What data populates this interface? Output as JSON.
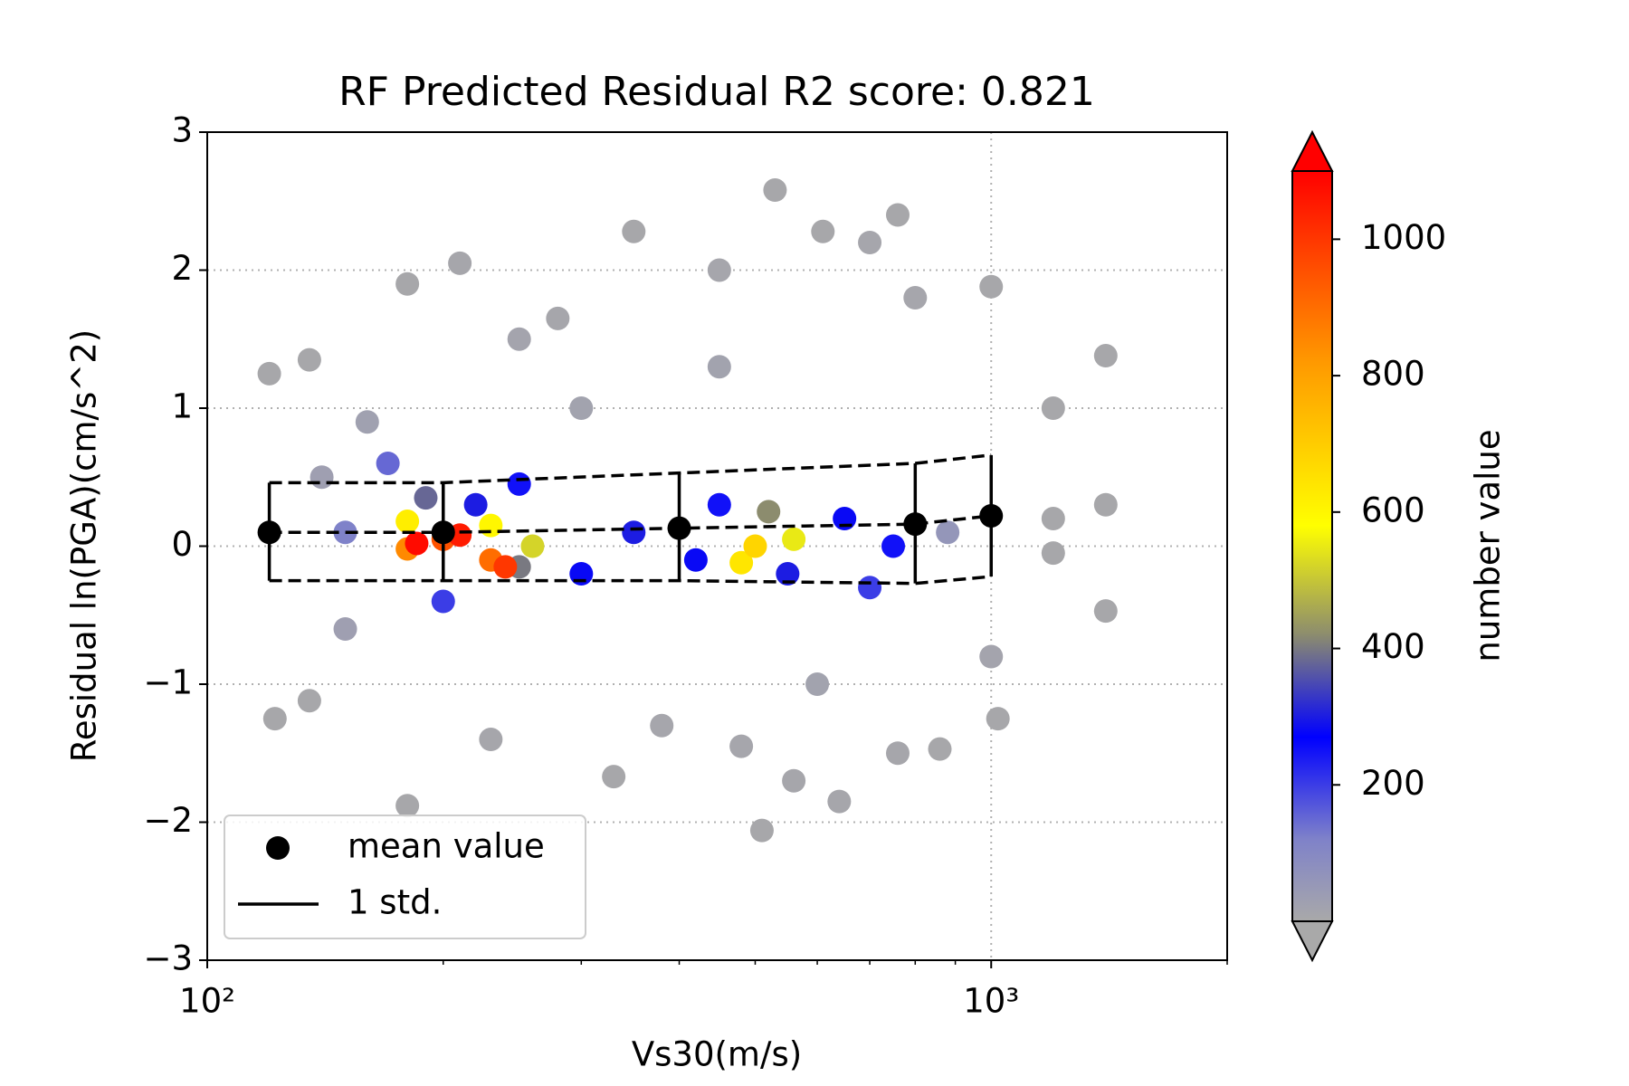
{
  "chart_data": {
    "type": "scatter",
    "title": "RF Predicted Residual R2 score: 0.821",
    "x_label": "Vs30(m/s)",
    "y_label": "Residual ln(PGA)(cm/s^2)",
    "x_log": true,
    "xlim": [
      100,
      2000
    ],
    "xticks": [
      {
        "value": 100,
        "label": "10²"
      },
      {
        "value": 1000,
        "label": "10³"
      }
    ],
    "xminorticks": [
      200,
      300,
      400,
      500,
      600,
      700,
      800,
      900,
      2000
    ],
    "ylim": [
      -3,
      3
    ],
    "yticks": [
      {
        "value": -3,
        "label": "−3"
      },
      {
        "value": -2,
        "label": "−2"
      },
      {
        "value": -1,
        "label": "−1"
      },
      0,
      1,
      2,
      3
    ],
    "grid": true,
    "legend": "lower left",
    "points": {
      "x": [
        120,
        122,
        135,
        135,
        180,
        180,
        210,
        230,
        280,
        330,
        350,
        380,
        450,
        480,
        510,
        530,
        560,
        610,
        640,
        700,
        760,
        760,
        800,
        860,
        1000,
        1020,
        1200,
        1200,
        1200,
        1400,
        1400,
        1400,
        1000,
        300,
        250,
        450,
        600,
        160,
        140,
        150,
        880,
        150,
        170,
        200,
        250,
        300,
        350,
        450,
        550,
        650,
        750,
        700,
        220,
        420,
        190,
        250,
        520,
        260,
        230,
        180,
        560,
        480,
        500,
        180,
        200,
        230,
        210,
        240,
        185
      ],
      "y": [
        1.25,
        -1.25,
        1.35,
        -1.12,
        1.9,
        -1.88,
        2.05,
        -1.4,
        1.65,
        -1.67,
        2.28,
        -1.3,
        2.0,
        -1.45,
        -2.06,
        2.58,
        -1.7,
        2.28,
        -1.85,
        2.2,
        2.4,
        -1.5,
        1.8,
        -1.47,
        1.88,
        -1.25,
        1.0,
        0.2,
        -0.05,
        1.38,
        0.3,
        -0.47,
        -0.8,
        1.0,
        1.5,
        1.3,
        -1.0,
        0.9,
        0.5,
        -0.6,
        0.1,
        0.1,
        0.6,
        -0.4,
        0.45,
        -0.2,
        0.1,
        0.3,
        -0.2,
        0.2,
        0.0,
        -0.3,
        0.3,
        -0.1,
        0.35,
        -0.15,
        0.25,
        0.0,
        0.15,
        0.18,
        0.05,
        -0.12,
        0.0,
        -0.02,
        0.05,
        -0.1,
        0.08,
        -0.15,
        0.02
      ],
      "counts": [
        5,
        5,
        5,
        5,
        5,
        5,
        8,
        8,
        8,
        5,
        5,
        10,
        10,
        10,
        5,
        5,
        8,
        5,
        8,
        10,
        5,
        8,
        10,
        5,
        5,
        5,
        5,
        5,
        5,
        5,
        5,
        5,
        15,
        20,
        15,
        20,
        20,
        25,
        30,
        30,
        60,
        120,
        150,
        200,
        250,
        280,
        300,
        250,
        300,
        280,
        250,
        200,
        300,
        280,
        380,
        400,
        420,
        520,
        600,
        620,
        550,
        640,
        680,
        850,
        950,
        900,
        1050,
        1000,
        1080
      ]
    },
    "mean": {
      "name": "mean value",
      "color": "#000000",
      "x": [
        120,
        200,
        400,
        800,
        1000
      ],
      "y": [
        0.1,
        0.1,
        0.13,
        0.16,
        0.22
      ]
    },
    "std": {
      "name": "1 std.",
      "color": "#000000",
      "upper": [
        0.46,
        0.46,
        0.53,
        0.6,
        0.66
      ],
      "lower": [
        -0.25,
        -0.25,
        -0.25,
        -0.27,
        -0.22
      ]
    },
    "colorbar": {
      "label": "number value",
      "clim": [
        0,
        1100
      ],
      "ticks": [
        200,
        400,
        600,
        800,
        1000
      ],
      "colormap": [
        {
          "value": 0,
          "color": "#a9a9a9"
        },
        {
          "value": 120,
          "color": "#7f82c9"
        },
        {
          "value": 270,
          "color": "#0000ff"
        },
        {
          "value": 420,
          "color": "#8c8c6e"
        },
        {
          "value": 580,
          "color": "#ffff00"
        },
        {
          "value": 820,
          "color": "#ff9900"
        },
        {
          "value": 1100,
          "color": "#ff0000"
        }
      ]
    }
  }
}
